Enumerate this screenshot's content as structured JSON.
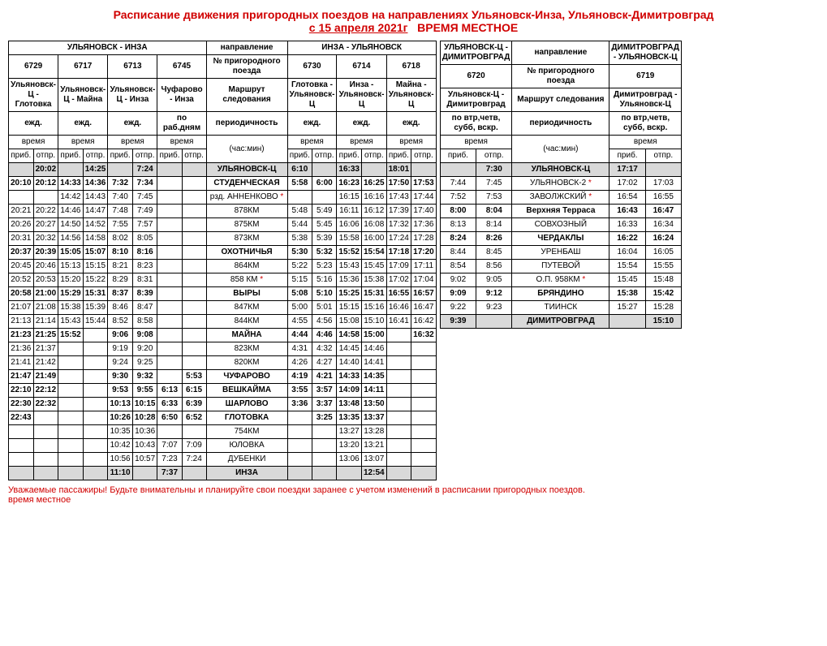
{
  "title": {
    "line1": "Расписание движения пригородных поездов на направлениях Ульяновск-Инза, Ульяновск-Димитровград",
    "line2_a": "с  15 апреля 2021г",
    "line2_b": "ВРЕМЯ МЕСТНОЕ"
  },
  "labels": {
    "direction": "направление",
    "train_no": "№ пригородного поезда",
    "route": "Маршрут следования",
    "frequency": "периодичность",
    "time": "время",
    "hourmin": "(час:мин)",
    "arr": "приб.",
    "dep": "отпр."
  },
  "left": {
    "dir_out": "УЛЬЯНОВСК - ИНЗА",
    "dir_in": "ИНЗА - УЛЬЯНОВСК",
    "out_trains": [
      {
        "no": "6729",
        "route": "Ульяновск-Ц - Глотовка",
        "freq": "ежд."
      },
      {
        "no": "6717",
        "route": "Ульяновск-Ц - Майна",
        "freq": "ежд."
      },
      {
        "no": "6713",
        "route": "Ульяновск-Ц - Инза",
        "freq": "ежд."
      },
      {
        "no": "6745",
        "route": "Чуфарово - Инза",
        "freq": "по раб.дням"
      }
    ],
    "in_trains": [
      {
        "no": "6730",
        "route": "Глотовка - Ульяновск-Ц",
        "freq": "ежд."
      },
      {
        "no": "6714",
        "route": "Инза - Ульяновск-Ц",
        "freq": "ежд."
      },
      {
        "no": "6718",
        "route": "Майна - Ульяновск-Ц",
        "freq": "ежд."
      }
    ],
    "rows": [
      {
        "station": "УЛЬЯНОВСК-Ц",
        "bold": true,
        "shade": true,
        "cells": [
          [
            "",
            "20:02"
          ],
          [
            "",
            "14:25"
          ],
          [
            "",
            "7:24"
          ],
          [
            "",
            ""
          ],
          [
            "6:10",
            ""
          ],
          [
            "16:33",
            ""
          ],
          [
            "18:01",
            ""
          ]
        ]
      },
      {
        "station": "СТУДЕНЧЕСКАЯ",
        "bold": true,
        "cells": [
          [
            "20:10",
            "20:12"
          ],
          [
            "14:33",
            "14:36"
          ],
          [
            "7:32",
            "7:34"
          ],
          [
            "",
            ""
          ],
          [
            "5:58",
            "6:00"
          ],
          [
            "16:23",
            "16:25"
          ],
          [
            "17:50",
            "17:53"
          ]
        ]
      },
      {
        "station": "рзд. АННЕНКОВО",
        "star": true,
        "cells": [
          [
            "",
            ""
          ],
          [
            "14:42",
            "14:43"
          ],
          [
            "7:40",
            "7:45"
          ],
          [
            "",
            ""
          ],
          [
            "",
            ""
          ],
          [
            "16:15",
            "16:16"
          ],
          [
            "17:43",
            "17:44"
          ]
        ]
      },
      {
        "station": "878КМ",
        "cells": [
          [
            "20:21",
            "20:22"
          ],
          [
            "14:46",
            "14:47"
          ],
          [
            "7:48",
            "7:49"
          ],
          [
            "",
            ""
          ],
          [
            "5:48",
            "5:49"
          ],
          [
            "16:11",
            "16:12"
          ],
          [
            "17:39",
            "17:40"
          ]
        ]
      },
      {
        "station": "875КМ",
        "cells": [
          [
            "20:26",
            "20:27"
          ],
          [
            "14:50",
            "14:52"
          ],
          [
            "7:55",
            "7:57"
          ],
          [
            "",
            ""
          ],
          [
            "5:44",
            "5:45"
          ],
          [
            "16:06",
            "16:08"
          ],
          [
            "17:32",
            "17:36"
          ]
        ]
      },
      {
        "station": "873КМ",
        "cells": [
          [
            "20:31",
            "20:32"
          ],
          [
            "14:56",
            "14:58"
          ],
          [
            "8:02",
            "8:05"
          ],
          [
            "",
            ""
          ],
          [
            "5:38",
            "5:39"
          ],
          [
            "15:58",
            "16:00"
          ],
          [
            "17:24",
            "17:28"
          ]
        ]
      },
      {
        "station": "ОХОТНИЧЬЯ",
        "bold": true,
        "cells": [
          [
            "20:37",
            "20:39"
          ],
          [
            "15:05",
            "15:07"
          ],
          [
            "8:10",
            "8:16"
          ],
          [
            "",
            ""
          ],
          [
            "5:30",
            "5:32"
          ],
          [
            "15:52",
            "15:54"
          ],
          [
            "17:18",
            "17:20"
          ]
        ]
      },
      {
        "station": "864КМ",
        "cells": [
          [
            "20:45",
            "20:46"
          ],
          [
            "15:13",
            "15:15"
          ],
          [
            "8:21",
            "8:23"
          ],
          [
            "",
            ""
          ],
          [
            "5:22",
            "5:23"
          ],
          [
            "15:43",
            "15:45"
          ],
          [
            "17:09",
            "17:11"
          ]
        ]
      },
      {
        "station": "858 КМ",
        "star": true,
        "cells": [
          [
            "20:52",
            "20:53"
          ],
          [
            "15:20",
            "15:22"
          ],
          [
            "8:29",
            "8:31"
          ],
          [
            "",
            ""
          ],
          [
            "5:15",
            "5:16"
          ],
          [
            "15:36",
            "15:38"
          ],
          [
            "17:02",
            "17:04"
          ]
        ]
      },
      {
        "station": "ВЫРЫ",
        "bold": true,
        "cells": [
          [
            "20:58",
            "21:00"
          ],
          [
            "15:29",
            "15:31"
          ],
          [
            "8:37",
            "8:39"
          ],
          [
            "",
            ""
          ],
          [
            "5:08",
            "5:10"
          ],
          [
            "15:25",
            "15:31"
          ],
          [
            "16:55",
            "16:57"
          ]
        ]
      },
      {
        "station": "847КМ",
        "cells": [
          [
            "21:07",
            "21:08"
          ],
          [
            "15:38",
            "15:39"
          ],
          [
            "8:46",
            "8:47"
          ],
          [
            "",
            ""
          ],
          [
            "5:00",
            "5:01"
          ],
          [
            "15:15",
            "15:16"
          ],
          [
            "16:46",
            "16:47"
          ]
        ]
      },
      {
        "station": "844КМ",
        "cells": [
          [
            "21:13",
            "21:14"
          ],
          [
            "15:43",
            "15:44"
          ],
          [
            "8:52",
            "8:58"
          ],
          [
            "",
            ""
          ],
          [
            "4:55",
            "4:56"
          ],
          [
            "15:08",
            "15:10"
          ],
          [
            "16:41",
            "16:42"
          ]
        ]
      },
      {
        "station": "МАЙНА",
        "bold": true,
        "cells": [
          [
            "21:23",
            "21:25"
          ],
          [
            "15:52",
            ""
          ],
          [
            "9:06",
            "9:08"
          ],
          [
            "",
            ""
          ],
          [
            "4:44",
            "4:46"
          ],
          [
            "14:58",
            "15:00"
          ],
          [
            "",
            "16:32"
          ]
        ]
      },
      {
        "station": "823КМ",
        "cells": [
          [
            "21:36",
            "21:37"
          ],
          [
            "",
            ""
          ],
          [
            "9:19",
            "9:20"
          ],
          [
            "",
            ""
          ],
          [
            "4:31",
            "4:32"
          ],
          [
            "14:45",
            "14:46"
          ],
          [
            "",
            ""
          ]
        ]
      },
      {
        "station": "820КМ",
        "cells": [
          [
            "21:41",
            "21:42"
          ],
          [
            "",
            ""
          ],
          [
            "9:24",
            "9:25"
          ],
          [
            "",
            ""
          ],
          [
            "4:26",
            "4:27"
          ],
          [
            "14:40",
            "14:41"
          ],
          [
            "",
            ""
          ]
        ]
      },
      {
        "station": "ЧУФАРОВО",
        "bold": true,
        "cells": [
          [
            "21:47",
            "21:49"
          ],
          [
            "",
            ""
          ],
          [
            "9:30",
            "9:32"
          ],
          [
            "",
            "5:53"
          ],
          [
            "4:19",
            "4:21"
          ],
          [
            "14:33",
            "14:35"
          ],
          [
            "",
            ""
          ]
        ]
      },
      {
        "station": "ВЕШКАЙМА",
        "bold": true,
        "cells": [
          [
            "22:10",
            "22:12"
          ],
          [
            "",
            ""
          ],
          [
            "9:53",
            "9:55"
          ],
          [
            "6:13",
            "6:15"
          ],
          [
            "3:55",
            "3:57"
          ],
          [
            "14:09",
            "14:11"
          ],
          [
            "",
            ""
          ]
        ]
      },
      {
        "station": "ШАРЛОВО",
        "bold": true,
        "cells": [
          [
            "22:30",
            "22:32"
          ],
          [
            "",
            ""
          ],
          [
            "10:13",
            "10:15"
          ],
          [
            "6:33",
            "6:39"
          ],
          [
            "3:36",
            "3:37"
          ],
          [
            "13:48",
            "13:50"
          ],
          [
            "",
            ""
          ]
        ]
      },
      {
        "station": "ГЛОТОВКА",
        "bold": true,
        "cells": [
          [
            "22:43",
            ""
          ],
          [
            "",
            ""
          ],
          [
            "10:26",
            "10:28"
          ],
          [
            "6:50",
            "6:52"
          ],
          [
            "",
            "3:25"
          ],
          [
            "13:35",
            "13:37"
          ],
          [
            "",
            ""
          ]
        ]
      },
      {
        "station": "754КМ",
        "cells": [
          [
            "",
            ""
          ],
          [
            "",
            ""
          ],
          [
            "10:35",
            "10:36"
          ],
          [
            "",
            ""
          ],
          [
            "",
            ""
          ],
          [
            "13:27",
            "13:28"
          ],
          [
            "",
            ""
          ]
        ]
      },
      {
        "station": "ЮЛОВКА",
        "cells": [
          [
            "",
            ""
          ],
          [
            "",
            ""
          ],
          [
            "10:42",
            "10:43"
          ],
          [
            "7:07",
            "7:09"
          ],
          [
            "",
            ""
          ],
          [
            "13:20",
            "13:21"
          ],
          [
            "",
            ""
          ]
        ]
      },
      {
        "station": "ДУБЕНКИ",
        "cells": [
          [
            "",
            ""
          ],
          [
            "",
            ""
          ],
          [
            "10:56",
            "10:57"
          ],
          [
            "7:23",
            "7:24"
          ],
          [
            "",
            ""
          ],
          [
            "13:06",
            "13:07"
          ],
          [
            "",
            ""
          ]
        ]
      },
      {
        "station": "ИНЗА",
        "bold": true,
        "shade": true,
        "cells": [
          [
            "",
            ""
          ],
          [
            "",
            ""
          ],
          [
            "11:10",
            ""
          ],
          [
            "7:37",
            ""
          ],
          [
            "",
            ""
          ],
          [
            "",
            "12:54"
          ],
          [
            "",
            ""
          ]
        ]
      }
    ]
  },
  "right": {
    "dir_out": "УЛЬЯНОВСК-Ц - ДИМИТРОВГРАД",
    "dir_in": "ДИМИТРОВГРАД - УЛЬЯНОВСК-Ц",
    "out_train": {
      "no": "6720",
      "route": "Ульяновск-Ц - Димитровград",
      "freq": "по втр,четв, субб, вскр."
    },
    "in_train": {
      "no": "6719",
      "route": "Димитровград - Ульяновск-Ц",
      "freq": "по втр,четв, субб, вскр."
    },
    "rows": [
      {
        "station": "УЛЬЯНОВСК-Ц",
        "bold": true,
        "shade": true,
        "cells": [
          [
            "",
            "7:30"
          ],
          [
            "17:17",
            ""
          ]
        ]
      },
      {
        "station": "УЛЬЯНОВСК-2",
        "star": true,
        "cells": [
          [
            "7:44",
            "7:45"
          ],
          [
            "17:02",
            "17:03"
          ]
        ]
      },
      {
        "station": "ЗАВОЛЖСКИЙ",
        "star": true,
        "cells": [
          [
            "7:52",
            "7:53"
          ],
          [
            "16:54",
            "16:55"
          ]
        ]
      },
      {
        "station": "Верхняя Терраса",
        "bold": true,
        "cells": [
          [
            "8:00",
            "8:04"
          ],
          [
            "16:43",
            "16:47"
          ]
        ]
      },
      {
        "station": "СОВХОЗНЫЙ",
        "cells": [
          [
            "8:13",
            "8:14"
          ],
          [
            "16:33",
            "16:34"
          ]
        ]
      },
      {
        "station": "ЧЕРДАКЛЫ",
        "bold": true,
        "cells": [
          [
            "8:24",
            "8:26"
          ],
          [
            "16:22",
            "16:24"
          ]
        ]
      },
      {
        "station": "УРЕНБАШ",
        "cells": [
          [
            "8:44",
            "8:45"
          ],
          [
            "16:04",
            "16:05"
          ]
        ]
      },
      {
        "station": "ПУТЕВОЙ",
        "cells": [
          [
            "8:54",
            "8:56"
          ],
          [
            "15:54",
            "15:55"
          ]
        ]
      },
      {
        "station": "О.П. 958КМ",
        "star": true,
        "cells": [
          [
            "9:02",
            "9:05"
          ],
          [
            "15:45",
            "15:48"
          ]
        ]
      },
      {
        "station": "БРЯНДИНО",
        "bold": true,
        "cells": [
          [
            "9:09",
            "9:12"
          ],
          [
            "15:38",
            "15:42"
          ]
        ]
      },
      {
        "station": "ТИИНСК",
        "cells": [
          [
            "9:22",
            "9:23"
          ],
          [
            "15:27",
            "15:28"
          ]
        ]
      },
      {
        "station": "ДИМИТРОВГРАД",
        "bold": true,
        "shade": true,
        "cells": [
          [
            "9:39",
            ""
          ],
          [
            "",
            "15:10"
          ]
        ]
      }
    ]
  },
  "footer": {
    "line1": "Уважаемые  пассажиры!  Будьте внимательны и планируйте свои поездки заранее с учетом изменений в расписании пригородных поездов.",
    "line2": "время местное"
  }
}
